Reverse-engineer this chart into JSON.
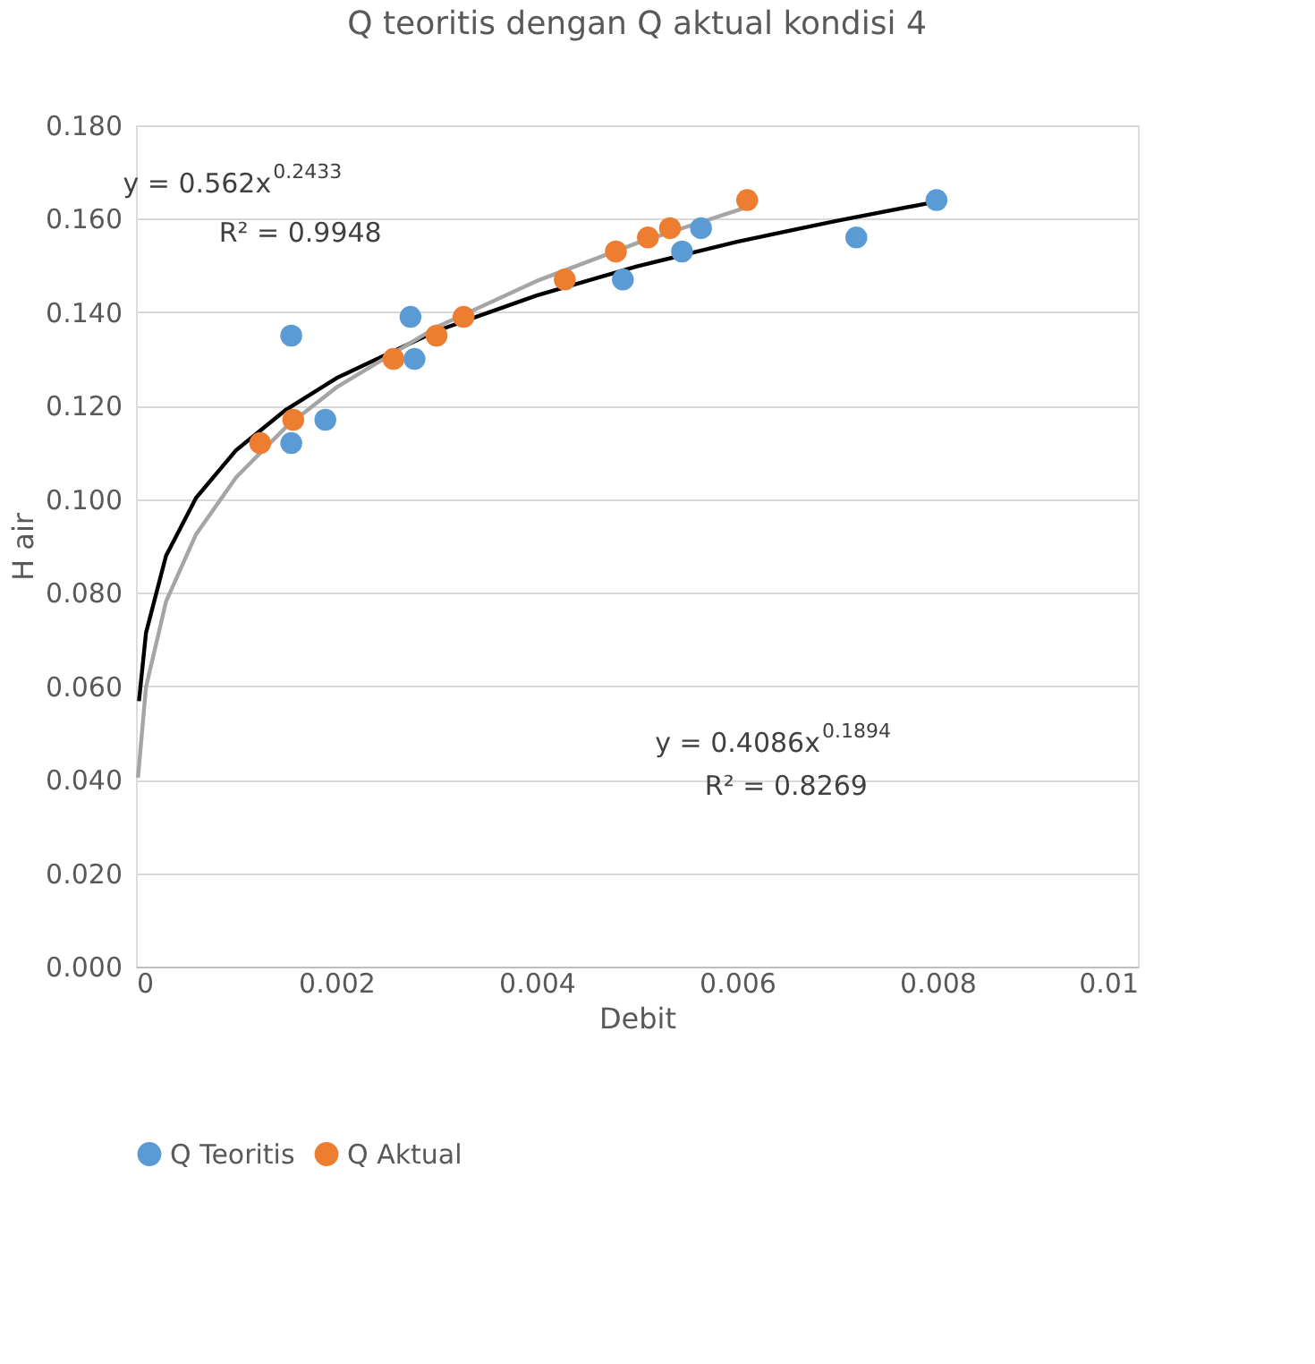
{
  "chart_data": {
    "type": "scatter",
    "title": "Q teoritis dengan Q aktual kondisi 4",
    "xlabel": "Debit",
    "ylabel": "H air",
    "xlim": [
      0,
      0.01
    ],
    "xticks": [
      0,
      0.002,
      0.004,
      0.006,
      0.008,
      0.01
    ],
    "ylim": [
      0,
      0.18
    ],
    "yticks": [
      {
        "value": 0,
        "label": "0.000"
      },
      {
        "value": 0.02,
        "label": "0.020"
      },
      {
        "value": 0.04,
        "label": "0.040"
      },
      {
        "value": 0.06,
        "label": "0.060"
      },
      {
        "value": 0.08,
        "label": "0.080"
      },
      {
        "value": 0.1,
        "label": "0.100"
      },
      {
        "value": 0.12,
        "label": "0.120"
      },
      {
        "value": 0.14,
        "label": "0.140"
      },
      {
        "value": 0.16,
        "label": "0.160"
      },
      {
        "value": 0.18,
        "label": "0.180"
      }
    ],
    "grid": "y",
    "legend": "bottom",
    "series": [
      {
        "name": "Q Teoritis",
        "color": "#5b9bd5",
        "marker": "circle",
        "x": [
          0.00155,
          0.00155,
          0.00189,
          0.00274,
          0.00278,
          0.00486,
          0.00545,
          0.00564,
          0.00719,
          0.00799
        ],
        "values": [
          0.135,
          0.112,
          0.117,
          0.139,
          0.13,
          0.147,
          0.153,
          0.158,
          0.156,
          0.164
        ]
      },
      {
        "name": "Q Aktual",
        "color": "#ed7d31",
        "marker": "circle",
        "x": [
          0.00124,
          0.00157,
          0.00257,
          0.003,
          0.00327,
          0.00428,
          0.00479,
          0.00511,
          0.00533,
          0.0061
        ],
        "values": [
          0.112,
          0.117,
          0.13,
          0.135,
          0.139,
          0.147,
          0.153,
          0.156,
          0.158,
          0.164
        ]
      },
      {
        "type": "line",
        "color": "#000000",
        "line_style": "solid",
        "x": [
          3e-05,
          0.0001,
          0.0003,
          0.0006,
          0.001,
          0.0015,
          0.002,
          0.003,
          0.004,
          0.005,
          0.006,
          0.007,
          0.008
        ],
        "values": [
          0.0568,
          0.0714,
          0.0879,
          0.1003,
          0.1105,
          0.1192,
          0.1259,
          0.136,
          0.1436,
          0.1498,
          0.1551,
          0.1596,
          0.1637
        ]
      },
      {
        "type": "line",
        "color": "#a5a5a5",
        "line_style": "solid",
        "x": [
          2e-05,
          0.0001,
          0.0003,
          0.0006,
          0.001,
          0.0015,
          0.002,
          0.003,
          0.004,
          0.005,
          0.0061
        ],
        "values": [
          0.0404,
          0.0598,
          0.0781,
          0.0925,
          0.1047,
          0.1155,
          0.1239,
          0.1368,
          0.1467,
          0.1548,
          0.1625
        ]
      }
    ],
    "annotations": [
      "y = 0.562x$^{0.2433}$",
      "R² = 0.9948",
      "y = 0.4086x$^{0.1894}$",
      "R² = 0.8269"
    ]
  }
}
